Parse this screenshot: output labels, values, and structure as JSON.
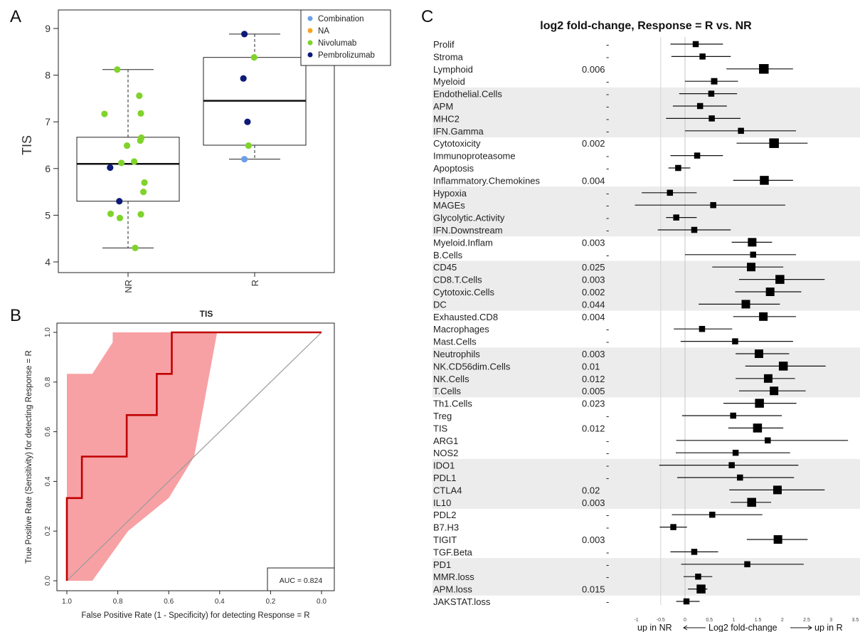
{
  "panels": {
    "a": "A",
    "b": "B",
    "c": "C"
  },
  "chart_data": [
    {
      "type": "box",
      "ylabel": "TIS",
      "categories": [
        "NR",
        "R"
      ],
      "ylim": [
        4,
        9
      ],
      "yticks": [
        4,
        5,
        6,
        7,
        8,
        9
      ],
      "legend": {
        "placement": "top-right",
        "entries": [
          {
            "name": "Combination",
            "color": "#6b9fea"
          },
          {
            "name": "NA",
            "color": "#f5a623"
          },
          {
            "name": "Nivolumab",
            "color": "#7fd32b"
          },
          {
            "name": "Pembrolizumab",
            "color": "#0d1a78"
          }
        ]
      },
      "boxes": [
        {
          "category": "NR",
          "whisker_low": 4.3,
          "q1": 5.3,
          "median": 6.1,
          "q3": 6.67,
          "whisker_high": 8.12
        },
        {
          "category": "R",
          "whisker_low": 6.2,
          "q1": 6.5,
          "median": 7.45,
          "q3": 8.38,
          "whisker_high": 8.88
        }
      ],
      "points": [
        {
          "category": "NR",
          "offset": -0.21,
          "value": 8.12,
          "group": "Nivolumab"
        },
        {
          "category": "NR",
          "offset": 0.22,
          "value": 7.56,
          "group": "Nivolumab"
        },
        {
          "category": "NR",
          "offset": -0.46,
          "value": 7.17,
          "group": "Nivolumab"
        },
        {
          "category": "NR",
          "offset": 0.25,
          "value": 7.18,
          "group": "Nivolumab"
        },
        {
          "category": "NR",
          "offset": 0.26,
          "value": 6.66,
          "group": "Nivolumab"
        },
        {
          "category": "NR",
          "offset": 0.24,
          "value": 6.6,
          "group": "Nivolumab"
        },
        {
          "category": "NR",
          "offset": -0.02,
          "value": 6.49,
          "group": "Nivolumab"
        },
        {
          "category": "NR",
          "offset": 0.12,
          "value": 6.15,
          "group": "Nivolumab"
        },
        {
          "category": "NR",
          "offset": -0.13,
          "value": 6.12,
          "group": "Nivolumab"
        },
        {
          "category": "NR",
          "offset": -0.35,
          "value": 6.02,
          "group": "Pembrolizumab"
        },
        {
          "category": "NR",
          "offset": 0.32,
          "value": 5.7,
          "group": "Nivolumab"
        },
        {
          "category": "NR",
          "offset": 0.3,
          "value": 5.5,
          "group": "Nivolumab"
        },
        {
          "category": "NR",
          "offset": -0.17,
          "value": 5.3,
          "group": "Pembrolizumab"
        },
        {
          "category": "NR",
          "offset": -0.34,
          "value": 5.03,
          "group": "Nivolumab"
        },
        {
          "category": "NR",
          "offset": 0.25,
          "value": 5.02,
          "group": "Nivolumab"
        },
        {
          "category": "NR",
          "offset": -0.16,
          "value": 4.94,
          "group": "Nivolumab"
        },
        {
          "category": "NR",
          "offset": 0.14,
          "value": 4.3,
          "group": "Nivolumab"
        },
        {
          "category": "R",
          "offset": -0.2,
          "value": 8.88,
          "group": "Pembrolizumab"
        },
        {
          "category": "R",
          "offset": -0.01,
          "value": 8.38,
          "group": "Nivolumab"
        },
        {
          "category": "R",
          "offset": -0.22,
          "value": 7.93,
          "group": "Pembrolizumab"
        },
        {
          "category": "R",
          "offset": -0.14,
          "value": 7.0,
          "group": "Pembrolizumab"
        },
        {
          "category": "R",
          "offset": -0.12,
          "value": 6.49,
          "group": "Nivolumab"
        },
        {
          "category": "R",
          "offset": -0.2,
          "value": 6.2,
          "group": "Combination"
        }
      ]
    },
    {
      "type": "line",
      "title": "TIS",
      "xlabel": "False Positive Rate (1 - Specificity) for detecting Response = R",
      "ylabel": "True Positive Rate (Sensitivity) for detecting Response = R",
      "xlim": [
        1.0,
        0.0
      ],
      "ylim": [
        0.0,
        1.0
      ],
      "xticks": [
        1.0,
        0.8,
        0.6,
        0.4,
        0.2,
        0.0
      ],
      "yticks": [
        0.0,
        0.2,
        0.4,
        0.6,
        0.8,
        1.0
      ],
      "xtick_labels": [
        "1.0",
        "0.8",
        "0.6",
        "0.4",
        "0.2",
        "0.0"
      ],
      "ytick_labels": [
        "0.0",
        "0.2",
        "0.4",
        "0.6",
        "0.8",
        "1.0"
      ],
      "annotation": "AUC = 0.824",
      "roc_curve": [
        [
          1.0,
          0.0
        ],
        [
          1.0,
          0.333
        ],
        [
          0.941,
          0.333
        ],
        [
          0.941,
          0.5
        ],
        [
          0.765,
          0.5
        ],
        [
          0.765,
          0.667
        ],
        [
          0.647,
          0.667
        ],
        [
          0.647,
          0.833
        ],
        [
          0.588,
          0.833
        ],
        [
          0.588,
          1.0
        ],
        [
          0.0,
          1.0
        ]
      ],
      "ci_band": {
        "upper": [
          [
            1.0,
            0.833
          ],
          [
            0.9,
            0.833
          ],
          [
            0.82,
            0.96
          ],
          [
            0.82,
            1.0
          ],
          [
            0.0,
            1.0
          ]
        ],
        "lower": [
          [
            1.0,
            0.0
          ],
          [
            0.9,
            0.0
          ],
          [
            0.76,
            0.2
          ],
          [
            0.6,
            0.333
          ],
          [
            0.5,
            0.5
          ],
          [
            0.41,
            1.0
          ]
        ]
      },
      "reference_line": [
        [
          1.0,
          0.0
        ],
        [
          0.0,
          1.0
        ]
      ]
    },
    {
      "type": "forest",
      "title": "log2 fold-change, Response = R vs. NR",
      "xlabel": "up in NR <---- Log2 fold-change ----> up in R",
      "xlabel_parts": {
        "left": "up in NR",
        "center": "Log2 fold-change",
        "right": "up in R"
      },
      "xlim": [
        -1.5,
        3.5
      ],
      "xticks": [
        -1,
        -0.5,
        0,
        0.5,
        1,
        1.5,
        2,
        2.5,
        3,
        3.5
      ],
      "xtick_labels": [
        "-1",
        "-0.5",
        "0",
        "0.5",
        "1",
        "1.5",
        "2",
        "2.5",
        "3",
        "3.5"
      ],
      "rows": [
        {
          "label": "Prolif",
          "pvalue": "-",
          "est": 0.22,
          "lo": -0.3,
          "hi": 0.78,
          "size": 0.35,
          "shaded": false
        },
        {
          "label": "Stroma",
          "pvalue": "-",
          "est": 0.36,
          "lo": -0.28,
          "hi": 0.94,
          "size": 0.35,
          "shaded": false
        },
        {
          "label": "Lymphoid",
          "pvalue": "0.006",
          "est": 1.62,
          "lo": 0.85,
          "hi": 2.22,
          "size": 0.85,
          "shaded": false
        },
        {
          "label": "Myeloid",
          "pvalue": "-",
          "est": 0.6,
          "lo": 0.0,
          "hi": 1.09,
          "size": 0.4,
          "shaded": false
        },
        {
          "label": "Endothelial.Cells",
          "pvalue": "-",
          "est": 0.54,
          "lo": -0.12,
          "hi": 1.07,
          "size": 0.35,
          "shaded": true
        },
        {
          "label": "APM",
          "pvalue": "-",
          "est": 0.31,
          "lo": -0.25,
          "hi": 0.86,
          "size": 0.35,
          "shaded": true
        },
        {
          "label": "MHC2",
          "pvalue": "-",
          "est": 0.55,
          "lo": -0.39,
          "hi": 1.14,
          "size": 0.35,
          "shaded": true
        },
        {
          "label": "IFN.Gamma",
          "pvalue": "-",
          "est": 1.15,
          "lo": 0.0,
          "hi": 2.28,
          "size": 0.35,
          "shaded": true
        },
        {
          "label": "Cytotoxicity",
          "pvalue": "0.002",
          "est": 1.83,
          "lo": 1.06,
          "hi": 2.52,
          "size": 0.85,
          "shaded": false
        },
        {
          "label": "Immunoproteasome",
          "pvalue": "-",
          "est": 0.25,
          "lo": -0.3,
          "hi": 0.78,
          "size": 0.35,
          "shaded": false
        },
        {
          "label": "Apoptosis",
          "pvalue": "-",
          "est": -0.14,
          "lo": -0.34,
          "hi": 0.11,
          "size": 0.35,
          "shaded": false
        },
        {
          "label": "Inflammatory.Chemokines",
          "pvalue": "0.004",
          "est": 1.63,
          "lo": 0.99,
          "hi": 2.22,
          "size": 0.75,
          "shaded": false
        },
        {
          "label": "Hypoxia",
          "pvalue": "-",
          "est": -0.31,
          "lo": -0.89,
          "hi": 0.24,
          "size": 0.35,
          "shaded": true
        },
        {
          "label": "MAGEs",
          "pvalue": "-",
          "est": 0.58,
          "lo": -1.03,
          "hi": 2.06,
          "size": 0.35,
          "shaded": true
        },
        {
          "label": "Glycolytic.Activity",
          "pvalue": "-",
          "est": -0.18,
          "lo": -0.39,
          "hi": 0.24,
          "size": 0.35,
          "shaded": true
        },
        {
          "label": "IFN.Downstream",
          "pvalue": "-",
          "est": 0.19,
          "lo": -0.56,
          "hi": 0.94,
          "size": 0.35,
          "shaded": true
        },
        {
          "label": "Myeloid.Inflam",
          "pvalue": "0.003",
          "est": 1.38,
          "lo": 0.96,
          "hi": 1.79,
          "size": 0.7,
          "shaded": false
        },
        {
          "label": "B.Cells",
          "pvalue": "-",
          "est": 1.4,
          "lo": 0.0,
          "hi": 2.28,
          "size": 0.35,
          "shaded": false
        },
        {
          "label": "CD45",
          "pvalue": "0.025",
          "est": 1.36,
          "lo": 0.56,
          "hi": 2.02,
          "size": 0.7,
          "shaded": true
        },
        {
          "label": "CD8.T.Cells",
          "pvalue": "0.003",
          "est": 1.95,
          "lo": 1.11,
          "hi": 2.87,
          "size": 0.75,
          "shaded": true
        },
        {
          "label": "Cytotoxic.Cells",
          "pvalue": "0.002",
          "est": 1.75,
          "lo": 1.03,
          "hi": 2.39,
          "size": 0.7,
          "shaded": true
        },
        {
          "label": "DC",
          "pvalue": "0.044",
          "est": 1.25,
          "lo": 0.28,
          "hi": 1.95,
          "size": 0.7,
          "shaded": true
        },
        {
          "label": "Exhausted.CD8",
          "pvalue": "0.004",
          "est": 1.61,
          "lo": 0.99,
          "hi": 2.28,
          "size": 0.7,
          "shaded": false
        },
        {
          "label": "Macrophages",
          "pvalue": "-",
          "est": 0.35,
          "lo": -0.23,
          "hi": 0.97,
          "size": 0.35,
          "shaded": false
        },
        {
          "label": "Mast.Cells",
          "pvalue": "-",
          "est": 1.03,
          "lo": -0.09,
          "hi": 2.22,
          "size": 0.35,
          "shaded": false
        },
        {
          "label": "Neutrophils",
          "pvalue": "0.003",
          "est": 1.52,
          "lo": 1.04,
          "hi": 2.14,
          "size": 0.7,
          "shaded": true
        },
        {
          "label": "NK.CD56dim.Cells",
          "pvalue": "0.01",
          "est": 2.02,
          "lo": 1.24,
          "hi": 2.89,
          "size": 0.75,
          "shaded": true
        },
        {
          "label": "NK.Cells",
          "pvalue": "0.012",
          "est": 1.71,
          "lo": 1.04,
          "hi": 2.26,
          "size": 0.7,
          "shaded": true
        },
        {
          "label": "T.Cells",
          "pvalue": "0.005",
          "est": 1.83,
          "lo": 1.11,
          "hi": 2.48,
          "size": 0.7,
          "shaded": true
        },
        {
          "label": "Th1.Cells",
          "pvalue": "0.023",
          "est": 1.53,
          "lo": 0.79,
          "hi": 2.29,
          "size": 0.75,
          "shaded": false
        },
        {
          "label": "Treg",
          "pvalue": "-",
          "est": 0.99,
          "lo": -0.06,
          "hi": 1.99,
          "size": 0.35,
          "shaded": false
        },
        {
          "label": "TIS",
          "pvalue": "0.012",
          "est": 1.49,
          "lo": 0.89,
          "hi": 2.02,
          "size": 0.75,
          "shaded": false
        },
        {
          "label": "ARG1",
          "pvalue": "-",
          "est": 1.7,
          "lo": -0.18,
          "hi": 3.35,
          "size": 0.35,
          "shaded": false
        },
        {
          "label": "NOS2",
          "pvalue": "-",
          "est": 1.04,
          "lo": -0.19,
          "hi": 2.16,
          "size": 0.35,
          "shaded": false
        },
        {
          "label": "IDO1",
          "pvalue": "-",
          "est": 0.96,
          "lo": -0.53,
          "hi": 2.33,
          "size": 0.35,
          "shaded": true
        },
        {
          "label": "PDL1",
          "pvalue": "-",
          "est": 1.13,
          "lo": -0.16,
          "hi": 2.24,
          "size": 0.35,
          "shaded": true
        },
        {
          "label": "CTLA4",
          "pvalue": "0.02",
          "est": 1.9,
          "lo": 0.91,
          "hi": 2.87,
          "size": 0.7,
          "shaded": true
        },
        {
          "label": "IL10",
          "pvalue": "0.003",
          "est": 1.37,
          "lo": 0.94,
          "hi": 1.77,
          "size": 0.75,
          "shaded": true
        },
        {
          "label": "PDL2",
          "pvalue": "-",
          "est": 0.56,
          "lo": -0.27,
          "hi": 1.59,
          "size": 0.35,
          "shaded": false
        },
        {
          "label": "B7.H3",
          "pvalue": "-",
          "est": -0.24,
          "lo": -0.52,
          "hi": 0.04,
          "size": 0.35,
          "shaded": false
        },
        {
          "label": "TIGIT",
          "pvalue": "0.003",
          "est": 1.91,
          "lo": 1.27,
          "hi": 2.52,
          "size": 0.7,
          "shaded": false
        },
        {
          "label": "TGF.Beta",
          "pvalue": "-",
          "est": 0.19,
          "lo": -0.3,
          "hi": 0.68,
          "size": 0.35,
          "shaded": false
        },
        {
          "label": "PD1",
          "pvalue": "-",
          "est": 1.28,
          "lo": -0.08,
          "hi": 2.44,
          "size": 0.35,
          "shaded": true
        },
        {
          "label": "MMR.loss",
          "pvalue": "-",
          "est": 0.27,
          "lo": -0.03,
          "hi": 0.56,
          "size": 0.35,
          "shaded": true
        },
        {
          "label": "APM.loss",
          "pvalue": "0.015",
          "est": 0.33,
          "lo": 0.06,
          "hi": 0.46,
          "size": 0.75,
          "shaded": true
        },
        {
          "label": "JAKSTAT.loss",
          "pvalue": "-",
          "est": 0.03,
          "lo": -0.18,
          "hi": 0.3,
          "size": 0.35,
          "shaded": false
        }
      ]
    }
  ]
}
